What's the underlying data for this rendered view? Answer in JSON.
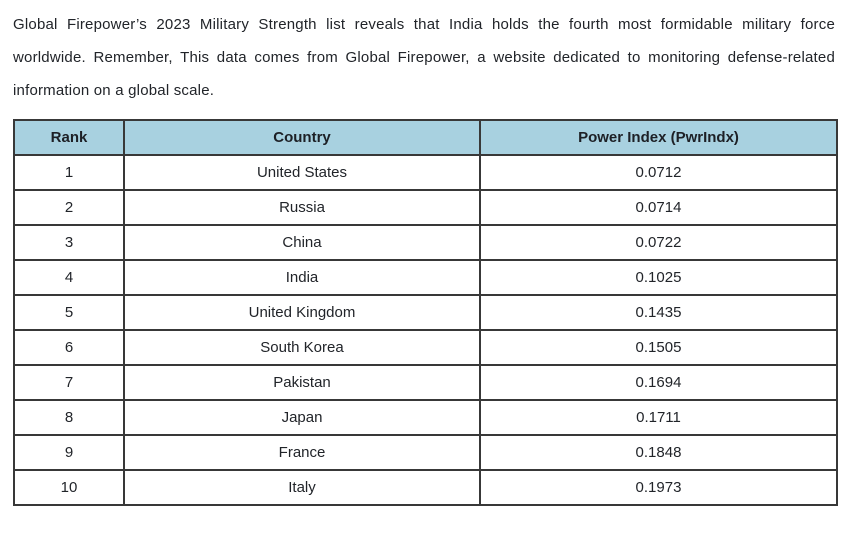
{
  "paragraph": "Global Firepower’s 2023 Military Strength list reveals that India holds the fourth most formidable military force worldwide. Remember, This data comes from Global Firepower, a website dedicated to monitoring defense-related information on a global scale.",
  "table": {
    "headers": [
      "Rank",
      "Country",
      "Power Index (PwrIndx)"
    ],
    "rows": [
      {
        "rank": "1",
        "country": "United States",
        "pwrindx": "0.0712"
      },
      {
        "rank": "2",
        "country": "Russia",
        "pwrindx": "0.0714"
      },
      {
        "rank": "3",
        "country": "China",
        "pwrindx": "0.0722"
      },
      {
        "rank": "4",
        "country": "India",
        "pwrindx": "0.1025"
      },
      {
        "rank": "5",
        "country": "United Kingdom",
        "pwrindx": "0.1435"
      },
      {
        "rank": "6",
        "country": "South Korea",
        "pwrindx": "0.1505"
      },
      {
        "rank": "7",
        "country": "Pakistan",
        "pwrindx": "0.1694"
      },
      {
        "rank": "8",
        "country": "Japan",
        "pwrindx": "0.1711"
      },
      {
        "rank": "9",
        "country": "France",
        "pwrindx": "0.1848"
      },
      {
        "rank": "10",
        "country": "Italy",
        "pwrindx": "0.1973"
      }
    ]
  },
  "colors": {
    "header_bg": "#a8d1e0",
    "border": "#383838",
    "text": "#212429"
  }
}
